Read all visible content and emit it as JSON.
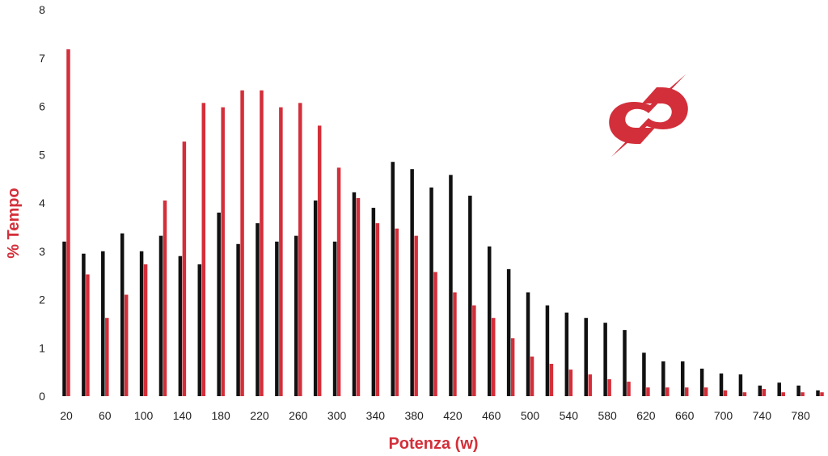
{
  "chart_data": {
    "type": "bar",
    "xlabel": "Potenza (w)",
    "ylabel": "% Tempo",
    "ylim": [
      0,
      8
    ],
    "y_ticks": [
      0,
      1,
      2,
      3,
      4,
      5,
      6,
      7,
      8
    ],
    "x_tick_labels": [
      "20",
      "60",
      "100",
      "140",
      "180",
      "220",
      "260",
      "300",
      "340",
      "380",
      "420",
      "460",
      "500",
      "540",
      "580",
      "620",
      "660",
      "700",
      "740",
      "780"
    ],
    "grid": false,
    "legend": "none",
    "x": [
      20,
      40,
      60,
      80,
      100,
      120,
      140,
      160,
      180,
      200,
      220,
      240,
      260,
      280,
      300,
      320,
      340,
      360,
      380,
      400,
      420,
      440,
      460,
      480,
      500,
      520,
      540,
      560,
      580,
      600,
      620,
      640,
      660,
      680,
      700,
      720,
      740,
      760,
      780,
      800
    ],
    "series": [
      {
        "color": "#111111",
        "values": [
          3.2,
          2.95,
          3.0,
          3.37,
          3.0,
          3.32,
          2.9,
          2.73,
          3.8,
          3.15,
          3.58,
          3.2,
          3.32,
          4.05,
          3.2,
          4.22,
          3.9,
          4.85,
          4.7,
          4.32,
          4.58,
          4.15,
          3.1,
          2.63,
          2.15,
          1.88,
          1.73,
          1.62,
          1.52,
          1.37,
          0.9,
          0.72,
          0.72,
          0.57,
          0.47,
          0.45,
          0.22,
          0.28,
          0.22,
          0.12
        ]
      },
      {
        "color": "#d32f3a",
        "values": [
          7.18,
          2.52,
          1.62,
          2.1,
          2.73,
          4.05,
          5.27,
          6.07,
          5.98,
          6.33,
          6.33,
          5.98,
          6.07,
          5.6,
          4.73,
          4.1,
          3.58,
          3.47,
          3.32,
          2.57,
          2.15,
          1.88,
          1.62,
          1.2,
          0.82,
          0.67,
          0.55,
          0.45,
          0.35,
          0.3,
          0.18,
          0.18,
          0.18,
          0.18,
          0.12,
          0.08,
          0.15,
          0.08,
          0.08,
          0.08
        ]
      }
    ]
  },
  "colors": {
    "accent": "#d32f3a",
    "dark": "#111111",
    "axis_text": "#222222"
  },
  "logo": {
    "icon": "lightning-s-logo-icon"
  }
}
